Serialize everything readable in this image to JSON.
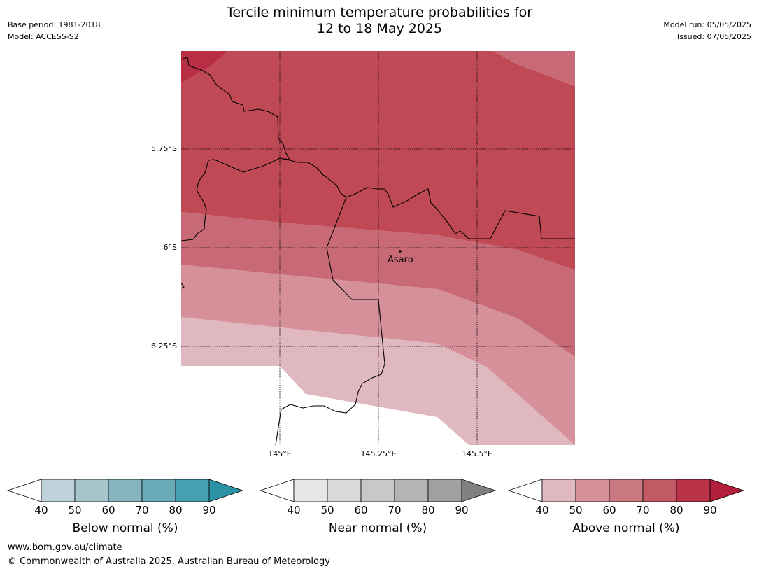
{
  "title": {
    "line1": "Tercile minimum temperature probabilities for",
    "line2": "12 to 18 May 2025"
  },
  "meta_left": {
    "base_period": "Base period: 1981-2018",
    "model": "Model: ACCESS-S2"
  },
  "meta_right": {
    "model_run": "Model run: 05/05/2025",
    "issued": "Issued: 07/05/2025"
  },
  "map": {
    "latitude_labels": [
      "5.75°S",
      "6°S",
      "6.25°S"
    ],
    "longitude_labels": [
      "145°E",
      "145.25°E",
      "145.5°E"
    ],
    "place": {
      "name": "Asaro"
    },
    "field": "Above normal probability (%)",
    "bands_percent": [
      {
        "range": "40-50",
        "color": "#e0b8bf"
      },
      {
        "range": "50-60",
        "color": "#d6909a"
      },
      {
        "range": "60-70",
        "color": "#c86a75"
      },
      {
        "range": "70-80",
        "color": "#c04956"
      },
      {
        "range": "80-90",
        "color": "#b82e44"
      }
    ]
  },
  "colorbars": [
    {
      "label": "Below normal (%)",
      "ticks": [
        "40",
        "50",
        "60",
        "70",
        "80",
        "90"
      ],
      "colors": [
        "#ffffff",
        "#bdd2d9",
        "#a5c4cb",
        "#88b4c0",
        "#6aabb9",
        "#47a0b0",
        "#2b91a4"
      ]
    },
    {
      "label": "Near normal (%)",
      "ticks": [
        "40",
        "50",
        "60",
        "70",
        "80",
        "90"
      ],
      "colors": [
        "#ffffff",
        "#e7e7e7",
        "#d9d9d9",
        "#c8c8c8",
        "#b4b4b4",
        "#a0a0a0",
        "#808080"
      ]
    },
    {
      "label": "Above normal (%)",
      "ticks": [
        "40",
        "50",
        "60",
        "70",
        "80",
        "90"
      ],
      "colors": [
        "#ffffff",
        "#e0b8bf",
        "#d6909a",
        "#c97880",
        "#c25a66",
        "#b93349",
        "#b31e3a"
      ]
    }
  ],
  "footer": {
    "url": "www.bom.gov.au/climate",
    "copyright": "© Commonwealth of Australia 2025, Australian Bureau of Meteorology"
  }
}
